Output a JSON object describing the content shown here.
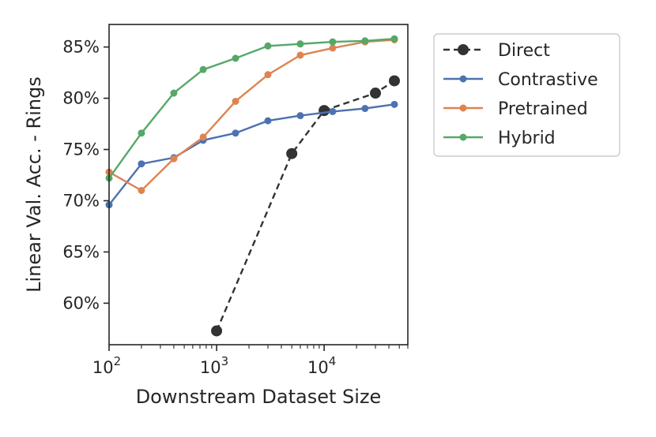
{
  "chart_data": {
    "type": "line",
    "xscale": "log",
    "xlabel": "Downstream Dataset Size",
    "ylabel": "Linear Val. Acc. - Rings",
    "xlim": [
      100,
      60000
    ],
    "ylim": [
      55.95,
      87.2
    ],
    "x_ticks": [
      {
        "value": 100,
        "base": "10",
        "exp": "2"
      },
      {
        "value": 1000,
        "base": "10",
        "exp": "3"
      },
      {
        "value": 10000,
        "base": "10",
        "exp": "4"
      }
    ],
    "y_ticks": [
      {
        "value": 60,
        "label": "60%"
      },
      {
        "value": 65,
        "label": "65%"
      },
      {
        "value": 70,
        "label": "70%"
      },
      {
        "value": 75,
        "label": "75%"
      },
      {
        "value": 80,
        "label": "80%"
      },
      {
        "value": 85,
        "label": "85%"
      }
    ],
    "series": [
      {
        "name": "Direct",
        "color": "#333333",
        "dashed": true,
        "big_markers": true,
        "x": [
          1000,
          5000,
          10000,
          30000,
          45000
        ],
        "y": [
          57.3,
          74.6,
          78.8,
          80.5,
          81.7
        ]
      },
      {
        "name": "Contrastive",
        "color": "#4c72b0",
        "dashed": false,
        "big_markers": false,
        "x": [
          100,
          200,
          400,
          750,
          1500,
          3000,
          6000,
          12000,
          24000,
          45000
        ],
        "y": [
          69.6,
          73.6,
          74.2,
          75.9,
          76.6,
          77.8,
          78.3,
          78.7,
          79.0,
          79.4
        ]
      },
      {
        "name": "Pretrained",
        "color": "#dd8452",
        "dashed": false,
        "big_markers": false,
        "x": [
          100,
          200,
          400,
          750,
          1500,
          3000,
          6000,
          12000,
          24000,
          45000
        ],
        "y": [
          72.8,
          71.0,
          74.1,
          76.2,
          79.7,
          82.3,
          84.2,
          84.9,
          85.5,
          85.7
        ]
      },
      {
        "name": "Hybrid",
        "color": "#55a868",
        "dashed": false,
        "big_markers": false,
        "x": [
          100,
          200,
          400,
          750,
          1500,
          3000,
          6000,
          12000,
          24000,
          45000
        ],
        "y": [
          72.2,
          76.6,
          80.5,
          82.8,
          83.9,
          85.1,
          85.3,
          85.5,
          85.6,
          85.8
        ]
      }
    ],
    "legend": {
      "position": "outside-right",
      "entries": [
        "Direct",
        "Contrastive",
        "Pretrained",
        "Hybrid"
      ]
    }
  }
}
